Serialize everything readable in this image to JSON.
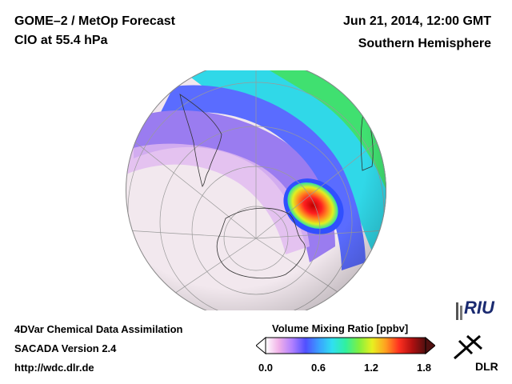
{
  "header": {
    "title_line1": "GOME–2 / MetOp Forecast",
    "title_line2": "ClO at 55.4 hPa",
    "date": "Jun 21, 2014, 12:00 GMT",
    "region": "Southern Hemisphere"
  },
  "footer": {
    "line1": "4DVar Chemical Data Assimilation",
    "line2": "SACADA Version 2.4",
    "line3": "http://wdc.dlr.de"
  },
  "colorbar": {
    "title": "Volume Mixing Ratio [ppbv]",
    "ticks": [
      "0.0",
      "0.6",
      "1.2",
      "1.8"
    ],
    "range": [
      0.0,
      1.8
    ],
    "colors": [
      "#ffffff",
      "#f0b0e8",
      "#b080ff",
      "#5050ff",
      "#3aa0ff",
      "#30e0f0",
      "#30f0a0",
      "#80f040",
      "#e8f020",
      "#ffa020",
      "#ff3020",
      "#b01010",
      "#501010"
    ]
  },
  "logos": {
    "riu": "RIU",
    "dlr": "DLR"
  },
  "map": {
    "projection": "orthographic",
    "hemisphere": "south",
    "max_value_ppbv": 1.8,
    "high_region": "Antarctic coast near 0–30°E"
  }
}
